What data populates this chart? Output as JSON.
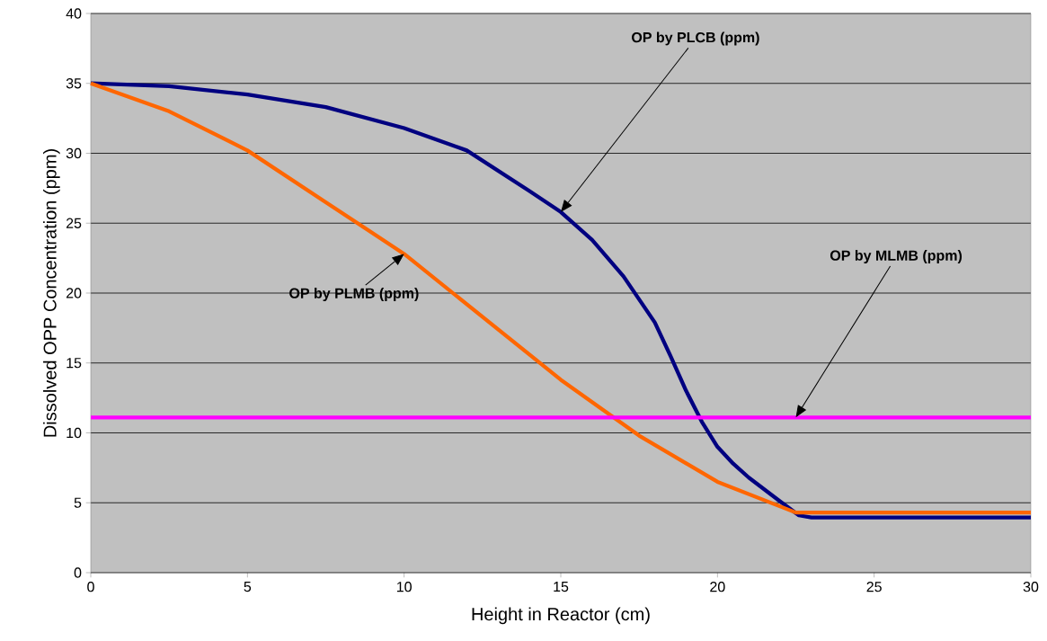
{
  "chart_data": {
    "type": "line",
    "xlabel": "Height in Reactor (cm)",
    "ylabel": "Dissolved OPP Concentration (ppm)",
    "xlim": [
      0,
      30
    ],
    "xticks": [
      0,
      5,
      10,
      15,
      20,
      25,
      30
    ],
    "ylim": [
      0,
      40
    ],
    "yticks": [
      0,
      5,
      10,
      15,
      20,
      25,
      30,
      35,
      40
    ],
    "grid": "y",
    "legend": false,
    "marker": "none",
    "line_style": "solid",
    "series": [
      {
        "name": "OP by PLCB (ppm)",
        "color": "#000080",
        "x": [
          0,
          2.5,
          5,
          7.5,
          10,
          12,
          14,
          15,
          16,
          17,
          18,
          18.5,
          19,
          19.5,
          20,
          20.5,
          21,
          22,
          22.6,
          23,
          30
        ],
        "values": [
          35,
          34.8,
          34.2,
          33.3,
          31.8,
          30.2,
          27.3,
          25.8,
          23.8,
          21.2,
          17.9,
          15.5,
          13,
          10.8,
          9,
          7.8,
          6.8,
          5.1,
          4.1,
          3.95,
          3.95
        ]
      },
      {
        "name": "OP by PLMB (ppm)",
        "color": "#ff6600",
        "x": [
          0,
          2.5,
          5,
          7.5,
          10,
          12.5,
          15,
          17.5,
          20,
          22.5,
          30
        ],
        "values": [
          35,
          33,
          30.2,
          26.5,
          22.8,
          18.3,
          13.8,
          9.8,
          6.5,
          4.3,
          4.3
        ]
      },
      {
        "name": "OP by MLMB (ppm)",
        "color": "#ff00ff",
        "x": [
          0,
          30
        ],
        "values": [
          11.1,
          11.1
        ]
      }
    ]
  }
}
